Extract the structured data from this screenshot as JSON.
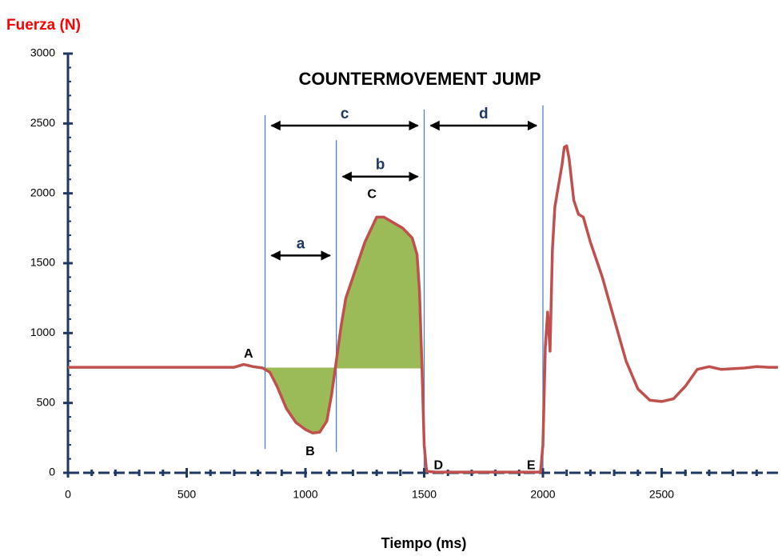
{
  "chart_data": {
    "type": "line",
    "title": "COUNTERMOVEMENT     JUMP",
    "y_label": "Fuerza (N)",
    "x_label": "Tiempo (ms)",
    "xlim": [
      0,
      3000
    ],
    "ylim": [
      0,
      3000
    ],
    "xticks": [
      0,
      500,
      1000,
      1500,
      2000,
      2500
    ],
    "yticks": [
      0,
      500,
      1000,
      1500,
      2000,
      2500,
      3000
    ],
    "series": [
      {
        "name": "Fuerza",
        "color": "#c0504d",
        "x": [
          0,
          200,
          500,
          700,
          740,
          780,
          820,
          850,
          880,
          920,
          960,
          1000,
          1030,
          1060,
          1090,
          1110,
          1130,
          1150,
          1170,
          1200,
          1250,
          1300,
          1330,
          1370,
          1410,
          1450,
          1470,
          1480,
          1490,
          1500,
          1510,
          1550,
          1800,
          1990,
          2000,
          2010,
          2020,
          2030,
          2040,
          2050,
          2060,
          2070,
          2080,
          2090,
          2100,
          2110,
          2130,
          2150,
          2170,
          2200,
          2250,
          2300,
          2350,
          2400,
          2450,
          2500,
          2550,
          2600,
          2650,
          2700,
          2750,
          2800,
          2850,
          2900,
          2950,
          2990
        ],
        "values": [
          755,
          755,
          755,
          755,
          775,
          760,
          750,
          720,
          620,
          460,
          360,
          310,
          285,
          290,
          370,
          560,
          800,
          1050,
          1250,
          1400,
          1650,
          1830,
          1830,
          1790,
          1750,
          1680,
          1560,
          1300,
          800,
          200,
          10,
          5,
          5,
          5,
          200,
          900,
          1150,
          870,
          1600,
          1900,
          2000,
          2100,
          2200,
          2330,
          2340,
          2250,
          1950,
          1850,
          1830,
          1650,
          1400,
          1100,
          800,
          600,
          520,
          510,
          530,
          620,
          740,
          760,
          740,
          745,
          750,
          760,
          755,
          755
        ]
      }
    ],
    "shaded_area": {
      "from": 830,
      "to": 1485,
      "baseline": 750,
      "color": "#9bbb59"
    },
    "vertical_lines": [
      {
        "x": 830,
        "ylim": [
          170,
          2560
        ]
      },
      {
        "x": 1130,
        "ylim": [
          150,
          2380
        ]
      },
      {
        "x": 1500,
        "ylim": [
          0,
          2600
        ]
      },
      {
        "x": 2000,
        "ylim": [
          0,
          2630
        ]
      }
    ],
    "intervals": [
      {
        "label": "a",
        "from": 830,
        "to": 1130,
        "y": 1555
      },
      {
        "label": "b",
        "from": 1130,
        "to": 1500,
        "y": 2120
      },
      {
        "label": "c",
        "from": 830,
        "to": 1500,
        "y": 2485
      },
      {
        "label": "d",
        "from": 1500,
        "to": 2000,
        "y": 2485
      }
    ],
    "points": [
      {
        "label": "A",
        "x": 760,
        "y": 850
      },
      {
        "label": "B",
        "x": 1020,
        "y": 150
      },
      {
        "label": "C",
        "x": 1280,
        "y": 1990
      },
      {
        "label": "D",
        "x": 1560,
        "y": 50
      },
      {
        "label": "E",
        "x": 1950,
        "y": 50
      }
    ]
  }
}
